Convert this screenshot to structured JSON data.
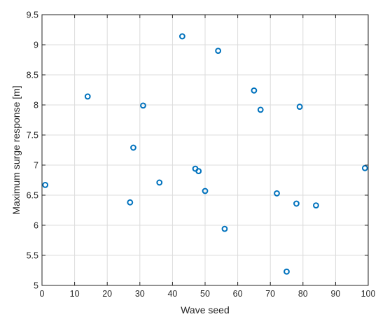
{
  "chart_data": {
    "type": "scatter",
    "xlabel": "Wave seed",
    "ylabel": "Maximum surge response [m]",
    "xlim": [
      0,
      100
    ],
    "ylim": [
      5,
      9.5
    ],
    "xticks": [
      0,
      10,
      20,
      30,
      40,
      50,
      60,
      70,
      80,
      90,
      100
    ],
    "yticks": [
      5,
      5.5,
      6,
      6.5,
      7,
      7.5,
      8,
      8.5,
      9,
      9.5
    ],
    "grid": true,
    "marker": "open-circle",
    "color": "#0072bd",
    "points": [
      {
        "x": 1,
        "y": 6.67
      },
      {
        "x": 14,
        "y": 8.14
      },
      {
        "x": 27,
        "y": 6.38
      },
      {
        "x": 28,
        "y": 7.29
      },
      {
        "x": 31,
        "y": 7.99
      },
      {
        "x": 36,
        "y": 6.71
      },
      {
        "x": 43,
        "y": 9.14
      },
      {
        "x": 47,
        "y": 6.94
      },
      {
        "x": 48,
        "y": 6.9
      },
      {
        "x": 50,
        "y": 6.57
      },
      {
        "x": 54,
        "y": 8.9
      },
      {
        "x": 56,
        "y": 5.94
      },
      {
        "x": 65,
        "y": 8.24
      },
      {
        "x": 67,
        "y": 7.92
      },
      {
        "x": 72,
        "y": 6.53
      },
      {
        "x": 75,
        "y": 5.23
      },
      {
        "x": 78,
        "y": 6.36
      },
      {
        "x": 79,
        "y": 7.97
      },
      {
        "x": 84,
        "y": 6.33
      },
      {
        "x": 99,
        "y": 6.95
      }
    ]
  }
}
